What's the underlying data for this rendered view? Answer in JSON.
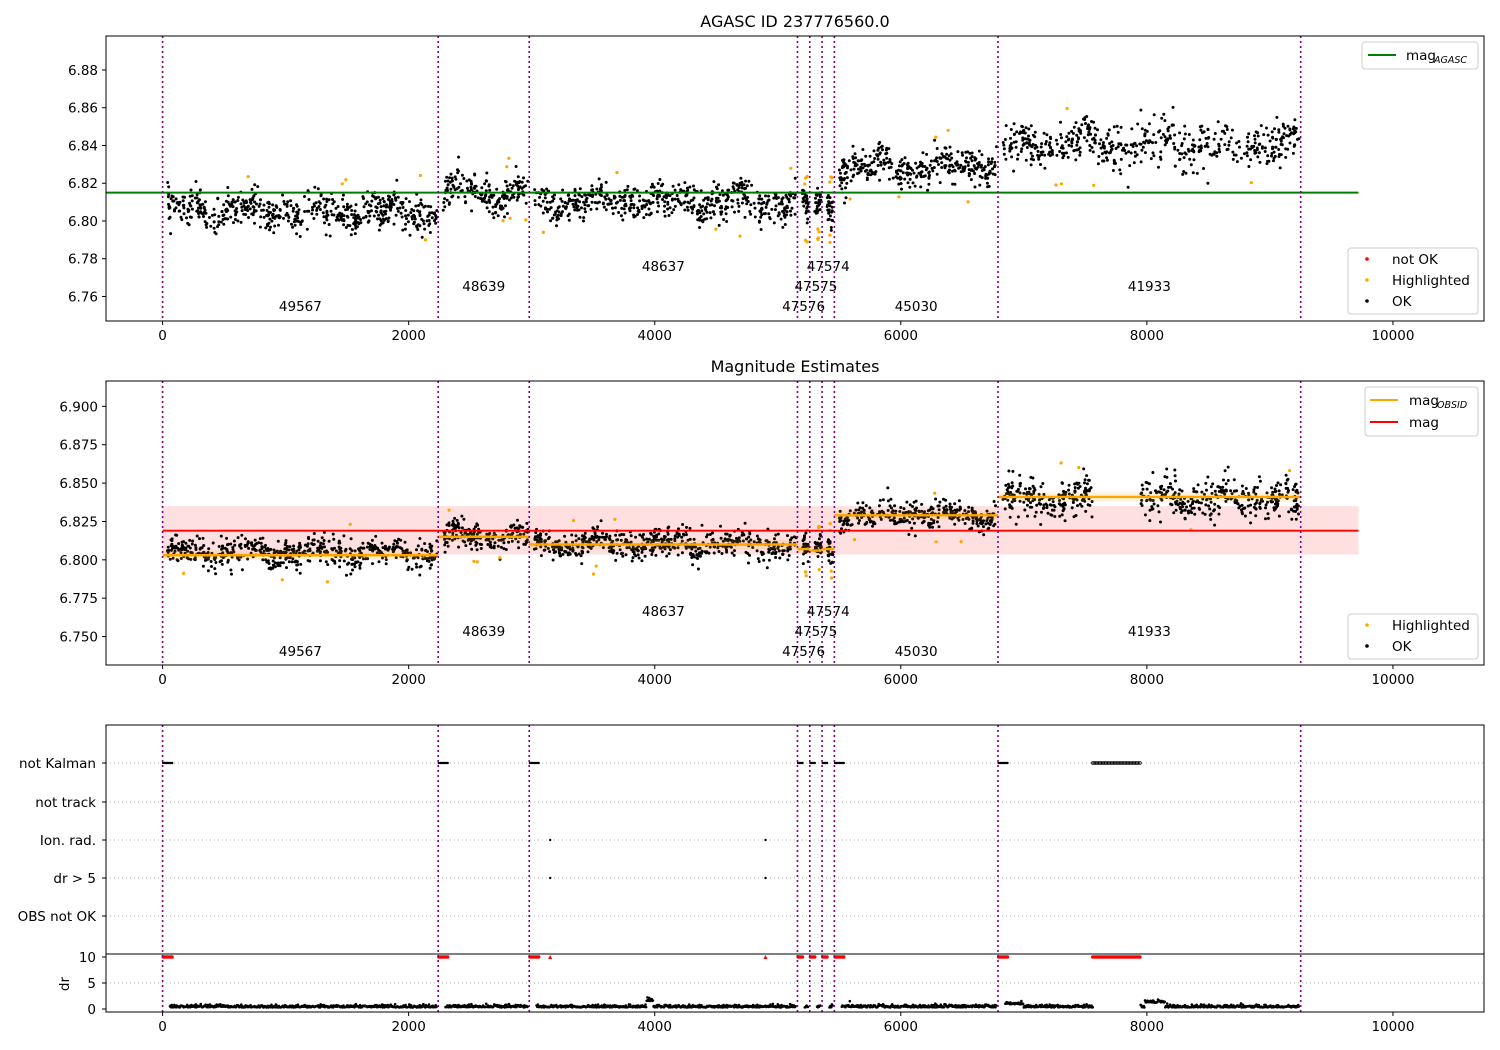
{
  "chart_data": [
    {
      "type": "scatter",
      "title": "AGASC ID 237776560.0",
      "xlim": [
        -460,
        10740
      ],
      "ylim": [
        6.747,
        6.898
      ],
      "x_ticks": [
        0,
        2000,
        4000,
        6000,
        8000,
        10000
      ],
      "y_ticks": [
        6.76,
        6.78,
        6.8,
        6.82,
        6.84,
        6.86,
        6.88
      ],
      "mag_agasc": 6.815,
      "mag_agasc_range": [
        -460,
        9720
      ],
      "legend_top": [
        {
          "label": "mag",
          "sub": "AGASC",
          "color": "#008000",
          "kind": "line"
        }
      ],
      "legend_bottom": [
        {
          "label": "not OK",
          "color": "#ff0000",
          "kind": "dot"
        },
        {
          "label": "Highlighted",
          "color": "#ffa500",
          "kind": "dot"
        },
        {
          "label": "OK",
          "color": "#000000",
          "kind": "dot"
        }
      ]
    },
    {
      "type": "scatter",
      "title": "Magnitude Estimates",
      "xlim": [
        -460,
        10740
      ],
      "ylim": [
        6.7315,
        6.9165
      ],
      "x_ticks": [
        0,
        2000,
        4000,
        6000,
        8000,
        10000
      ],
      "y_ticks": [
        6.75,
        6.775,
        6.8,
        6.825,
        6.85,
        6.875,
        6.9
      ],
      "mag": 6.819,
      "mag_band": [
        6.8035,
        6.835
      ],
      "mag_range": [
        0,
        9720
      ],
      "legend_top": [
        {
          "label": "mag",
          "sub": "OBSID",
          "color": "#ffa500",
          "kind": "line"
        },
        {
          "label": "mag",
          "sub": "",
          "color": "#ff0000",
          "kind": "line"
        }
      ],
      "legend_bottom": [
        {
          "label": "Highlighted",
          "color": "#ffa500",
          "kind": "dot"
        },
        {
          "label": "OK",
          "color": "#000000",
          "kind": "dot"
        }
      ]
    },
    {
      "type": "scatter",
      "flag_labels": [
        "not Kalman",
        "not track",
        "Ion. rad.",
        "dr > 5",
        "OBS not OK"
      ],
      "dr_ticks": [
        0,
        5,
        10
      ],
      "dr_ylabel": "dr",
      "xlim": [
        -460,
        10740
      ],
      "x_ticks": [
        0,
        2000,
        4000,
        6000,
        8000,
        10000
      ]
    }
  ],
  "observations": [
    {
      "obsid": "49567",
      "x_start": 0,
      "x_end": 2240,
      "mag_obsid": 6.803,
      "agasc_center": 6.805,
      "spread": 0.0045,
      "label_row": 3
    },
    {
      "obsid": "48639",
      "x_start": 2240,
      "x_end": 2980,
      "mag_obsid": 6.815,
      "agasc_center": 6.815,
      "spread": 0.0045,
      "label_row": 2
    },
    {
      "obsid": "48637",
      "x_start": 2980,
      "x_end": 5160,
      "mag_obsid": 6.81,
      "agasc_center": 6.81,
      "spread": 0.0045,
      "label_row": 1
    },
    {
      "obsid": "47576",
      "x_start": 5160,
      "x_end": 5260,
      "mag_obsid": 6.807,
      "agasc_center": 6.806,
      "spread": 0.004,
      "label_row": 3
    },
    {
      "obsid": "47575",
      "x_start": 5260,
      "x_end": 5360,
      "mag_obsid": 6.806,
      "agasc_center": 6.808,
      "spread": 0.004,
      "label_row": 2
    },
    {
      "obsid": "47574",
      "x_start": 5360,
      "x_end": 5460,
      "mag_obsid": 6.807,
      "agasc_center": 6.806,
      "spread": 0.004,
      "label_row": 1
    },
    {
      "obsid": "45030",
      "x_start": 5460,
      "x_end": 6790,
      "mag_obsid": 6.829,
      "agasc_center": 6.829,
      "spread": 0.0045,
      "label_row": 3
    },
    {
      "obsid": "41933",
      "x_start": 6790,
      "x_end": 9250,
      "mag_obsid": 6.841,
      "agasc_center": 6.84,
      "spread": 0.006,
      "label_row": 2
    }
  ],
  "obs_boundaries": [
    0,
    2240,
    2980,
    5160,
    5260,
    5360,
    5460,
    6790,
    9250
  ]
}
